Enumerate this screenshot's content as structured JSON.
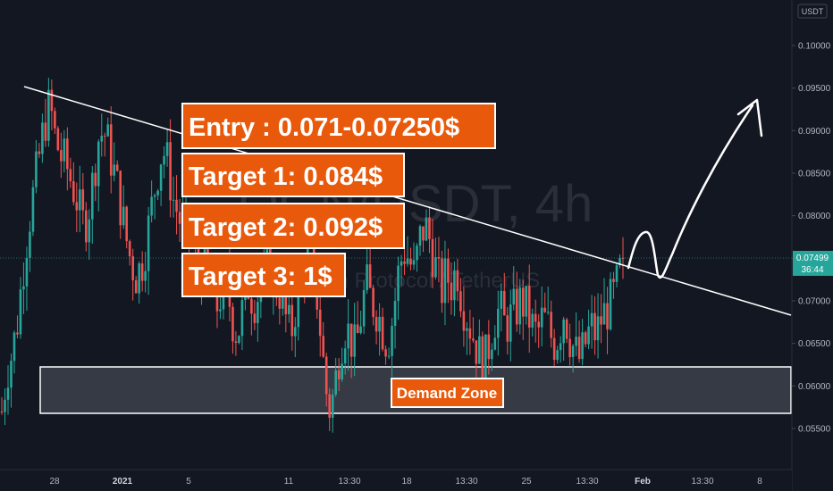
{
  "chart_data": {
    "type": "candlestick",
    "watermark_symbol": "OGN/USDT, 4h",
    "watermark_name": "Origin Protocol / TetherUS",
    "price_axis": {
      "currency": "USDT",
      "ticks": [
        "0.10000",
        "0.09500",
        "0.09000",
        "0.08500",
        "0.08000",
        "0.07500",
        "0.07000",
        "0.06500",
        "0.06000",
        "0.05500"
      ],
      "current_price": "0.07499",
      "countdown": "36:44",
      "ylim": [
        0.0505,
        0.1056
      ]
    },
    "time_axis": {
      "ticks": [
        "28",
        "2021",
        "5",
        "11",
        "13:30",
        "18",
        "13:30",
        "25",
        "13:30",
        "Feb",
        "13:30",
        "8"
      ]
    },
    "close_path": [
      0.057,
      0.062,
      0.064,
      0.068,
      0.074,
      0.079,
      0.083,
      0.087,
      0.091,
      0.093,
      0.089,
      0.087,
      0.086,
      0.084,
      0.082,
      0.079,
      0.08,
      0.084,
      0.089,
      0.09,
      0.088,
      0.085,
      0.082,
      0.078,
      0.075,
      0.073,
      0.074,
      0.077,
      0.081,
      0.085,
      0.088,
      0.086,
      0.082,
      0.08,
      0.078,
      0.079,
      0.076,
      0.073,
      0.075,
      0.072,
      0.069,
      0.071,
      0.072,
      0.068,
      0.066,
      0.069,
      0.072,
      0.07,
      0.071,
      0.073,
      0.074,
      0.072,
      0.071,
      0.068,
      0.066,
      0.07,
      0.073,
      0.076,
      0.074,
      0.07,
      0.063,
      0.057,
      0.059,
      0.064,
      0.067,
      0.066,
      0.064,
      0.068,
      0.072,
      0.07,
      0.069,
      0.067,
      0.065,
      0.068,
      0.073,
      0.076,
      0.075,
      0.073,
      0.077,
      0.079,
      0.077,
      0.074,
      0.071,
      0.073,
      0.072,
      0.074,
      0.07,
      0.068,
      0.066,
      0.064,
      0.062,
      0.065,
      0.068,
      0.069,
      0.067,
      0.068,
      0.069,
      0.07,
      0.069,
      0.067,
      0.066,
      0.068,
      0.067,
      0.065,
      0.066,
      0.069,
      0.066,
      0.064,
      0.063,
      0.065,
      0.067,
      0.066,
      0.068,
      0.069,
      0.07,
      0.072,
      0.075
    ],
    "annotations": {
      "entry": "Entry : 0.071-0.07250$",
      "target1": "Target 1: 0.084$",
      "target2": "Target 2: 0.092$",
      "target3": "Target 3: 1$",
      "demand_zone": "Demand Zone",
      "demand_zone_range": [
        0.0568,
        0.0623
      ]
    },
    "colors": {
      "background": "#131722",
      "up": "#26a69a",
      "down": "#ef5350",
      "label_fill": "#e8590c",
      "current_price_badge": "#26a69a"
    }
  }
}
